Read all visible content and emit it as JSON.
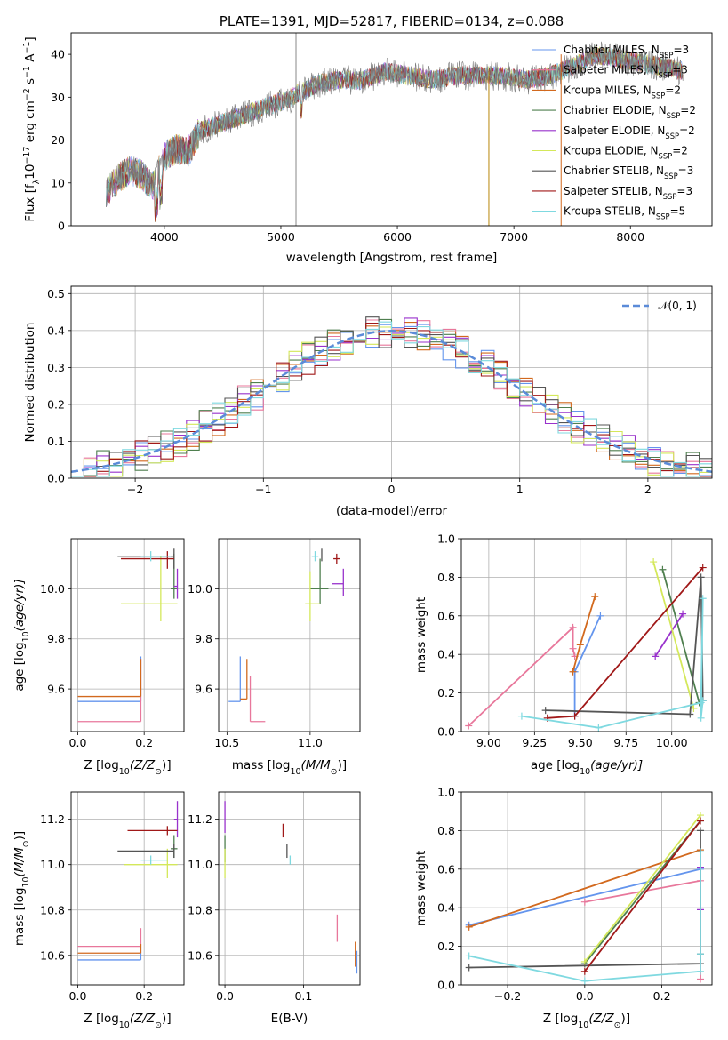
{
  "chart_data": [
    {
      "type": "line",
      "title": "PLATE=1391, MJD=52817, FIBERID=0134, z=0.088",
      "xlabel": "wavelength [Angstrom, rest frame]",
      "ylabel": "Flux [f",
      "ylabel_rich": [
        "Flux [f",
        "λ",
        "10",
        "−17",
        " erg cm",
        "−2",
        " s",
        "−1",
        " A",
        "−1",
        "]"
      ],
      "xlim": [
        3200,
        8700
      ],
      "ylim": [
        0,
        45
      ],
      "xticks": [
        4000,
        5000,
        6000,
        7000,
        8000
      ],
      "xtick_labels": [
        "4000",
        "5000",
        "6000",
        "7000",
        "8000"
      ],
      "yticks": [
        0,
        10,
        20,
        30,
        40
      ],
      "ytick_labels": [
        "0",
        "10",
        "20",
        "30",
        "40"
      ],
      "grid": false,
      "legend_position": "right",
      "spectrum_knots": {
        "x": [
          3500,
          3600,
          3700,
          3800,
          3900,
          4000,
          4100,
          4200,
          4300,
          4500,
          4700,
          4900,
          5100,
          5300,
          5500,
          5700,
          5900,
          6100,
          6300,
          6500,
          6700,
          6900,
          7100,
          7300,
          7500,
          7700,
          7900,
          8100,
          8300,
          8450
        ],
        "y": [
          8,
          11,
          13,
          12,
          9,
          16,
          18,
          17,
          22,
          24,
          26,
          28,
          30,
          33,
          34,
          34,
          36,
          35,
          34,
          35,
          35,
          35,
          34,
          35,
          37,
          40,
          39,
          38,
          37,
          36
        ]
      },
      "series": [
        {
          "name_text": "Chabrier MILES, N",
          "sub": "SSP",
          "eq": "=3",
          "color": "#6495ed"
        },
        {
          "name_text": "Salpeter MILES, N",
          "sub": "SSP",
          "eq": "=3",
          "color": "#e8779b"
        },
        {
          "name_text": "Kroupa MILES, N",
          "sub": "SSP",
          "eq": "=2",
          "color": "#d2691e"
        },
        {
          "name_text": "Chabrier ELODIE, N",
          "sub": "SSP",
          "eq": "=2",
          "color": "#4f7f4f"
        },
        {
          "name_text": "Salpeter ELODIE, N",
          "sub": "SSP",
          "eq": "=2",
          "color": "#9932cc"
        },
        {
          "name_text": "Kroupa ELODIE, N",
          "sub": "SSP",
          "eq": "=2",
          "color": "#d4e85a"
        },
        {
          "name_text": "Chabrier STELIB, N",
          "sub": "SSP",
          "eq": "=3",
          "color": "#555555"
        },
        {
          "name_text": "Salpeter STELIB, N",
          "sub": "SSP",
          "eq": "=3",
          "color": "#a01818"
        },
        {
          "name_text": "Kroupa STELIB, N",
          "sub": "SSP",
          "eq": "=5",
          "color": "#7fd9e0"
        }
      ]
    },
    {
      "type": "histogram",
      "xlabel": "(data-model)/error",
      "ylabel": "Normed distribution",
      "xlim": [
        -2.5,
        2.5
      ],
      "ylim": [
        0,
        0.52
      ],
      "xticks": [
        -2,
        -1,
        0,
        1,
        2
      ],
      "xtick_labels": [
        "−2",
        "−1",
        "0",
        "1",
        "2"
      ],
      "yticks": [
        0,
        0.1,
        0.2,
        0.3,
        0.4,
        0.5
      ],
      "ytick_labels": [
        "0.0",
        "0.1",
        "0.2",
        "0.3",
        "0.4",
        "0.5"
      ],
      "grid": true,
      "legend_position": "top-right",
      "legend_label": "𝒩(0, 1)",
      "reference_curve": {
        "name": "𝒩(0, 1)",
        "mean": 0,
        "sigma": 1,
        "color": "#5b8bd8"
      },
      "bin_width": 0.1
    },
    {
      "type": "scatter",
      "panel": "age-vs-metallicity",
      "xlabel": "Z [log",
      "xlabel_rich": [
        "Z [log",
        "10",
        "(Z/Z",
        "⊙",
        ")]"
      ],
      "ylabel_rich": [
        "age  [log",
        "10",
        "(age/yr)]"
      ],
      "xlim": [
        -0.02,
        0.32
      ],
      "ylim": [
        9.43,
        10.2
      ],
      "xticks": [
        0.0,
        0.2
      ],
      "xtick_labels": [
        "0.0",
        "0.2"
      ],
      "yticks": [
        9.6,
        9.8,
        10.0
      ],
      "ytick_labels": [
        "9.6",
        "9.8",
        "10.0"
      ],
      "grid": true
    },
    {
      "type": "scatter",
      "panel": "age-vs-mass",
      "xlabel_rich": [
        "mass [log",
        "10",
        "(M/M",
        "⊙",
        ")]"
      ],
      "xlim": [
        10.45,
        11.3
      ],
      "ylim": [
        9.43,
        10.2
      ],
      "xticks": [
        10.5,
        11.0
      ],
      "xtick_labels": [
        "10.5",
        "11.0"
      ],
      "yticks": [
        9.6,
        9.8,
        10.0
      ],
      "ytick_labels": [
        "9.6",
        "9.8",
        "10.0"
      ],
      "grid": true
    },
    {
      "type": "line",
      "panel": "mass-weight-vs-age",
      "xlabel_rich": [
        "age  [log",
        "10",
        "(age/yr)]"
      ],
      "ylabel": "mass weight",
      "xlim": [
        8.85,
        10.22
      ],
      "ylim": [
        0,
        1.0
      ],
      "xticks": [
        9.0,
        9.25,
        9.5,
        9.75,
        10.0
      ],
      "xtick_labels": [
        "9.00",
        "9.25",
        "9.50",
        "9.75",
        "10.00"
      ],
      "yticks": [
        0,
        0.2,
        0.4,
        0.6,
        0.8,
        1.0
      ],
      "ytick_labels": [
        "0.0",
        "0.2",
        "0.4",
        "0.6",
        "0.8",
        "1.0"
      ],
      "grid": true,
      "series": [
        {
          "color": "#6495ed",
          "x": [
            9.47,
            9.47,
            9.61
          ],
          "y": [
            0.08,
            0.31,
            0.6
          ]
        },
        {
          "color": "#e8779b",
          "x": [
            8.89,
            9.46,
            9.46,
            9.47
          ],
          "y": [
            0.03,
            0.54,
            0.43,
            0.39
          ]
        },
        {
          "color": "#d2691e",
          "x": [
            9.46,
            9.5,
            9.58
          ],
          "y": [
            0.31,
            0.45,
            0.7
          ]
        },
        {
          "color": "#4f7f4f",
          "x": [
            9.95,
            10.15
          ],
          "y": [
            0.84,
            0.15
          ]
        },
        {
          "color": "#9932cc",
          "x": [
            9.91,
            10.06
          ],
          "y": [
            0.39,
            0.61
          ]
        },
        {
          "color": "#d4e85a",
          "x": [
            9.9,
            10.12
          ],
          "y": [
            0.88,
            0.12
          ]
        },
        {
          "color": "#555555",
          "x": [
            9.31,
            10.1,
            10.16,
            10.17
          ],
          "y": [
            0.11,
            0.09,
            0.8,
            0.16
          ]
        },
        {
          "color": "#a01818",
          "x": [
            9.32,
            9.47,
            10.17
          ],
          "y": [
            0.07,
            0.08,
            0.85
          ]
        },
        {
          "color": "#7fd9e0",
          "x": [
            9.18,
            9.6,
            10.16,
            10.17,
            10.16,
            10.17
          ],
          "y": [
            0.08,
            0.02,
            0.15,
            0.69,
            0.07,
            0.16
          ]
        }
      ]
    },
    {
      "type": "scatter",
      "panel": "mass-vs-metallicity",
      "xlabel_rich": [
        "Z [log",
        "10",
        "(Z/Z",
        "⊙",
        ")]"
      ],
      "ylabel_rich": [
        "mass [log",
        "10",
        "(M/M",
        "⊙",
        ")]"
      ],
      "xlim": [
        -0.02,
        0.32
      ],
      "ylim": [
        10.47,
        11.32
      ],
      "xticks": [
        0.0,
        0.2
      ],
      "xtick_labels": [
        "0.0",
        "0.2"
      ],
      "yticks": [
        10.6,
        10.8,
        11.0,
        11.2
      ],
      "ytick_labels": [
        "10.6",
        "10.8",
        "11.0",
        "11.2"
      ],
      "grid": true
    },
    {
      "type": "scatter",
      "panel": "mass-vs-extinction",
      "xlabel": "E(B-V)",
      "xlim": [
        -0.008,
        0.172
      ],
      "ylim": [
        10.47,
        11.32
      ],
      "xticks": [
        0.0,
        0.1
      ],
      "xtick_labels": [
        "0.0",
        "0.1"
      ],
      "yticks": [
        10.6,
        10.8,
        11.0,
        11.2
      ],
      "ytick_labels": [
        "10.6",
        "10.8",
        "11.0",
        "11.2"
      ],
      "grid": true
    },
    {
      "type": "line",
      "panel": "mass-weight-vs-metallicity",
      "xlabel_rich": [
        "Z [log",
        "10",
        "(Z/Z",
        "⊙",
        ")]"
      ],
      "ylabel": "mass weight",
      "xlim": [
        -0.32,
        0.33
      ],
      "ylim": [
        0,
        1.0
      ],
      "xticks": [
        -0.2,
        0.0,
        0.2
      ],
      "xtick_labels": [
        "−0.2",
        "0.0",
        "0.2"
      ],
      "yticks": [
        0,
        0.2,
        0.4,
        0.6,
        0.8,
        1.0
      ],
      "ytick_labels": [
        "0.0",
        "0.2",
        "0.4",
        "0.6",
        "0.8",
        "1.0"
      ],
      "grid": true,
      "series": [
        {
          "color": "#6495ed",
          "x": [
            -0.3,
            0.3
          ],
          "y": [
            0.31,
            0.6
          ]
        },
        {
          "color": "#e8779b",
          "x": [
            0.0,
            0.3,
            0.3
          ],
          "y": [
            0.43,
            0.54,
            0.03
          ]
        },
        {
          "color": "#d2691e",
          "x": [
            -0.3,
            0.3
          ],
          "y": [
            0.3,
            0.7
          ]
        },
        {
          "color": "#4f7f4f",
          "x": [
            0.0,
            0.3
          ],
          "y": [
            0.11,
            0.85
          ]
        },
        {
          "color": "#9932cc",
          "x": [
            0.3,
            0.3
          ],
          "y": [
            0.39,
            0.61
          ]
        },
        {
          "color": "#d4e85a",
          "x": [
            0.0,
            0.3
          ],
          "y": [
            0.12,
            0.88
          ]
        },
        {
          "color": "#555555",
          "x": [
            -0.3,
            0.3,
            0.3,
            0.3
          ],
          "y": [
            0.09,
            0.11,
            0.8,
            0.16
          ]
        },
        {
          "color": "#a01818",
          "x": [
            0.0,
            0.3
          ],
          "y": [
            0.07,
            0.85
          ]
        },
        {
          "color": "#7fd9e0",
          "x": [
            -0.3,
            0.0,
            0.3,
            0.3,
            0.3
          ],
          "y": [
            0.15,
            0.02,
            0.07,
            0.69,
            0.16
          ]
        }
      ]
    }
  ]
}
